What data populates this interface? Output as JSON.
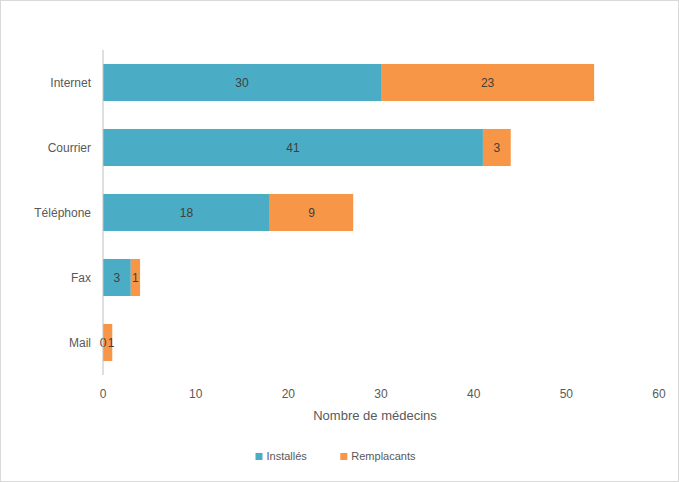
{
  "chart_data": {
    "type": "bar",
    "orientation": "horizontal",
    "stacked": true,
    "data_labels": true,
    "grid": false,
    "legend": "bottom",
    "x_label": "Nombre de médecins",
    "categories": [
      "Internet",
      "Courrier",
      "Téléphone",
      "Fax",
      "Mail"
    ],
    "series": [
      {
        "name": "Installés",
        "color": "#4bacc6",
        "values": [
          30,
          41,
          18,
          3,
          0
        ]
      },
      {
        "name": "Remplacants",
        "color": "#f79646",
        "values": [
          23,
          3,
          9,
          1,
          1
        ]
      }
    ],
    "xlim": [
      0,
      60
    ],
    "xticks": [
      0,
      10,
      20,
      30,
      40,
      50,
      60
    ]
  }
}
